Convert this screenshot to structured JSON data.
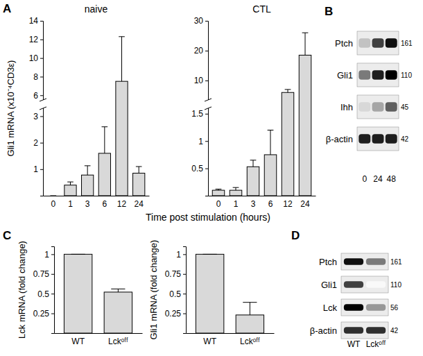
{
  "chart_data": [
    {
      "type": "bar",
      "title": "naive",
      "y_label": "Gli1 mRNA (x10⁻⁴CD3ε)",
      "x_label": "Time post stimulation (hours)",
      "categories": [
        "0",
        "1",
        "3",
        "6",
        "12",
        "24"
      ],
      "values": [
        0,
        0.4,
        0.78,
        1.6,
        7.5,
        0.85
      ],
      "errors": [
        0,
        0.12,
        0.35,
        1.0,
        4.8,
        0.25
      ],
      "color": "#d9d9d9",
      "ylim": [
        0,
        14
      ],
      "y_break": [
        3.3,
        5.5
      ],
      "yticks": [
        1,
        2,
        3,
        6,
        8,
        10,
        12,
        14
      ]
    },
    {
      "type": "bar",
      "title": "CTL",
      "categories": [
        "0",
        "1",
        "3",
        "6",
        "12",
        "24"
      ],
      "values": [
        0.1,
        0.1,
        0.53,
        0.75,
        6,
        18.5
      ],
      "errors": [
        0.02,
        0.05,
        0.12,
        0.45,
        1,
        7.5
      ],
      "color": "#d9d9d9",
      "ylim": [
        0,
        30
      ],
      "y_break": [
        1.6,
        3.5
      ],
      "yticks": [
        0.5,
        1,
        1.5,
        10,
        20,
        30
      ]
    },
    {
      "type": "bar",
      "y_label": "Lck mRNA (fold change)",
      "categories": [
        "WT",
        "Lckᵒᶠᶠ"
      ],
      "values": [
        1,
        0.52
      ],
      "errors": [
        0,
        0.04
      ],
      "color": "#d9d9d9",
      "ylim": [
        0,
        1.1
      ],
      "yticks": [
        0.25,
        0.5,
        0.75,
        1
      ]
    },
    {
      "type": "bar",
      "y_label": "Gli1 mRNA (fold change)",
      "categories": [
        "WT",
        "Lckᵒᶠᶠ"
      ],
      "values": [
        1,
        0.23
      ],
      "errors": [
        0,
        0.16
      ],
      "color": "#d9d9d9",
      "ylim": [
        0,
        1.1
      ],
      "yticks": [
        0.25,
        0.5,
        0.75,
        1
      ]
    }
  ],
  "panel_labels": [
    "A",
    "B",
    "C",
    "D"
  ],
  "blots": [
    {
      "lanes": [
        "0",
        "24",
        "48"
      ],
      "rows": [
        {
          "label": "Ptch",
          "size": 161,
          "intensity": [
            0.35,
            0.8,
            0.95
          ]
        },
        {
          "label": "Gli1",
          "size": 110,
          "intensity": [
            0.6,
            0.9,
            1
          ]
        },
        {
          "label": "Ihh",
          "size": 45,
          "intensity": [
            0.25,
            0.45,
            0.7
          ]
        },
        {
          "label": "β-actin",
          "size": 42,
          "intensity": [
            0.9,
            0.9,
            0.9
          ]
        }
      ]
    },
    {
      "lanes": [
        "WT",
        "Lckᵒᶠᶠ"
      ],
      "rows": [
        {
          "label": "Ptch",
          "size": 161,
          "intensity": [
            0.95,
            0.6
          ]
        },
        {
          "label": "Gli1",
          "size": 110,
          "intensity": [
            0.8,
            0.05
          ]
        },
        {
          "label": "Lck",
          "size": 56,
          "intensity": [
            1,
            0.5
          ]
        },
        {
          "label": "β-actin",
          "size": 42,
          "intensity": [
            0.85,
            0.85
          ]
        }
      ]
    }
  ]
}
